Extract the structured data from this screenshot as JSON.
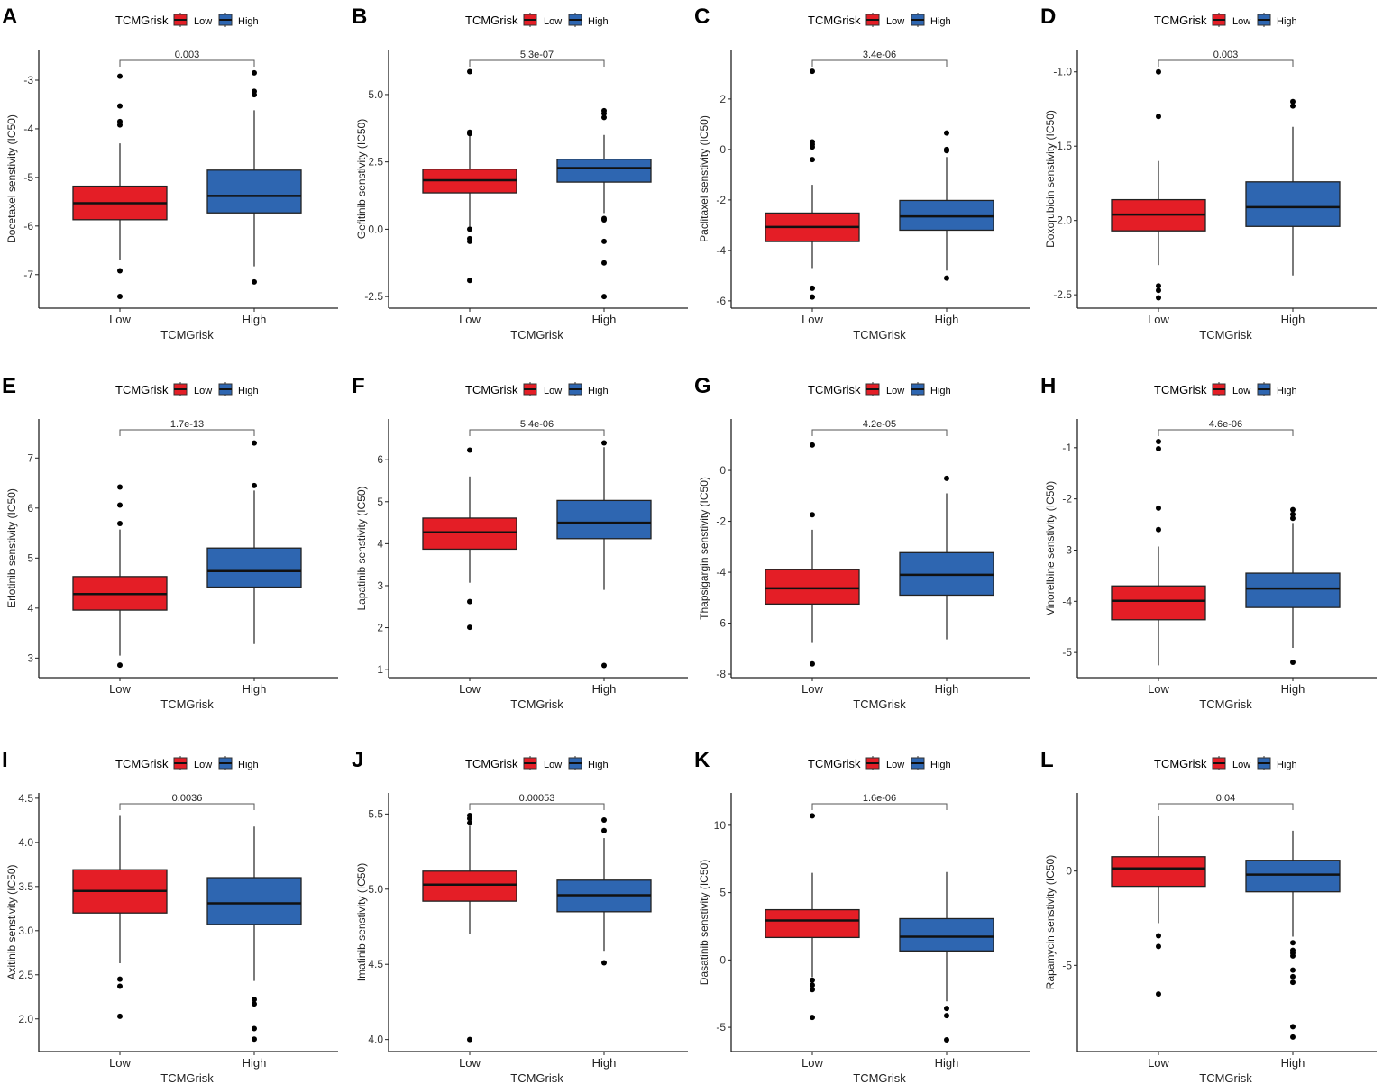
{
  "colors": {
    "low": "#e41e26",
    "high": "#2e66b1",
    "axis": "#222222"
  },
  "chart_data": [
    {
      "letter": "A",
      "type": "box",
      "title": "",
      "legend_title": "TCMGrisk",
      "legend": [
        "Low",
        "High"
      ],
      "categories": [
        "Low",
        "High"
      ],
      "xlabel": "TCMGrisk",
      "ylabel": "Docetaxel senstivity (IC50)",
      "ylim": [
        -7.69,
        -2.37
      ],
      "yticks": [
        -7,
        -6,
        -5,
        -4,
        -3
      ],
      "ytick_labels": [
        "-7",
        "-6",
        "-5",
        "-4",
        "-3"
      ],
      "pvalue": "0.003",
      "boxes": [
        {
          "min": -6.7,
          "q1": -5.87,
          "median": -5.53,
          "q3": -5.18,
          "max": -4.3,
          "outliers": [
            -2.92,
            -3.53,
            -3.85,
            -3.92,
            -6.92,
            -7.45
          ]
        },
        {
          "min": -6.83,
          "q1": -5.73,
          "median": -5.38,
          "q3": -4.85,
          "max": -3.62,
          "outliers": [
            -2.85,
            -3.23,
            -3.3,
            -7.15
          ]
        }
      ]
    },
    {
      "letter": "B",
      "type": "box",
      "legend_title": "TCMGrisk",
      "legend": [
        "Low",
        "High"
      ],
      "categories": [
        "Low",
        "High"
      ],
      "xlabel": "TCMGrisk",
      "ylabel": "Gefitinib senstivity (IC50)",
      "ylim": [
        -2.93,
        6.67
      ],
      "yticks": [
        -2.5,
        0,
        2.5,
        5
      ],
      "ytick_labels": [
        "-2.5",
        "0.0",
        "2.5",
        "5.0"
      ],
      "pvalue": "5.3e-07",
      "boxes": [
        {
          "min": 0.1,
          "q1": 1.35,
          "median": 1.82,
          "q3": 2.23,
          "max": 3.5,
          "outliers": [
            5.85,
            3.55,
            3.6,
            0.0,
            -0.35,
            -0.45,
            -1.9
          ]
        },
        {
          "min": 0.6,
          "q1": 1.75,
          "median": 2.27,
          "q3": 2.6,
          "max": 3.5,
          "outliers": [
            4.4,
            4.3,
            4.15,
            0.4,
            0.35,
            -0.45,
            -1.25,
            -2.5
          ]
        }
      ]
    },
    {
      "letter": "C",
      "type": "box",
      "legend_title": "TCMGrisk",
      "legend": [
        "Low",
        "High"
      ],
      "categories": [
        "Low",
        "High"
      ],
      "xlabel": "TCMGrisk",
      "ylabel": "Paclitaxel senstivity (IC50)",
      "ylim": [
        -6.29,
        3.96
      ],
      "yticks": [
        -6,
        -4,
        -2,
        0,
        2
      ],
      "ytick_labels": [
        "-6",
        "-4",
        "-2",
        "0",
        "2"
      ],
      "pvalue": "3.4e-06",
      "boxes": [
        {
          "min": -4.7,
          "q1": -3.65,
          "median": -3.07,
          "q3": -2.52,
          "max": -1.4,
          "outliers": [
            3.1,
            0.3,
            0.2,
            0.1,
            -0.4,
            -5.5,
            -5.85
          ]
        },
        {
          "min": -4.8,
          "q1": -3.2,
          "median": -2.65,
          "q3": -2.02,
          "max": -0.3,
          "outliers": [
            0.65,
            0.0,
            -0.05,
            -5.1
          ]
        }
      ]
    },
    {
      "letter": "D",
      "type": "box",
      "legend_title": "TCMGrisk",
      "legend": [
        "Low",
        "High"
      ],
      "categories": [
        "Low",
        "High"
      ],
      "xlabel": "TCMGrisk",
      "ylabel": "Doxorubicin senstivity (IC50)",
      "ylim": [
        -2.59,
        -0.85
      ],
      "yticks": [
        -2.5,
        -2,
        -1.5,
        -1
      ],
      "ytick_labels": [
        "-2.5",
        "-2.0",
        "-1.5",
        "-1.0"
      ],
      "pvalue": "0.003",
      "boxes": [
        {
          "min": -2.3,
          "q1": -2.07,
          "median": -1.96,
          "q3": -1.86,
          "max": -1.6,
          "outliers": [
            -1.0,
            -1.3,
            -2.44,
            -2.47,
            -2.52
          ]
        },
        {
          "min": -2.37,
          "q1": -2.04,
          "median": -1.91,
          "q3": -1.74,
          "max": -1.37,
          "outliers": [
            -1.2,
            -1.23
          ]
        }
      ]
    },
    {
      "letter": "E",
      "type": "box",
      "legend_title": "TCMGrisk",
      "legend": [
        "Low",
        "High"
      ],
      "categories": [
        "Low",
        "High"
      ],
      "xlabel": "TCMGrisk",
      "ylabel": "Erlotinib senstivity (IC50)",
      "ylim": [
        2.61,
        7.78
      ],
      "yticks": [
        3,
        4,
        5,
        6,
        7
      ],
      "ytick_labels": [
        "3",
        "4",
        "5",
        "6",
        "7"
      ],
      "pvalue": "1.7e-13",
      "boxes": [
        {
          "min": 3.05,
          "q1": 3.96,
          "median": 4.28,
          "q3": 4.63,
          "max": 5.57,
          "outliers": [
            6.42,
            6.06,
            5.69,
            2.86
          ]
        },
        {
          "min": 3.28,
          "q1": 4.42,
          "median": 4.74,
          "q3": 5.2,
          "max": 6.35,
          "outliers": [
            7.3,
            6.45
          ]
        }
      ]
    },
    {
      "letter": "F",
      "type": "box",
      "legend_title": "TCMGrisk",
      "legend": [
        "Low",
        "High"
      ],
      "categories": [
        "Low",
        "High"
      ],
      "xlabel": "TCMGrisk",
      "ylabel": "Lapatinib senstivity (IC50)",
      "ylim": [
        0.81,
        6.97
      ],
      "yticks": [
        1,
        2,
        3,
        4,
        5,
        6
      ],
      "ytick_labels": [
        "1",
        "2",
        "3",
        "4",
        "5",
        "6"
      ],
      "pvalue": "5.4e-06",
      "boxes": [
        {
          "min": 3.07,
          "q1": 3.87,
          "median": 4.27,
          "q3": 4.61,
          "max": 5.6,
          "outliers": [
            6.23,
            2.62,
            2.01
          ]
        },
        {
          "min": 2.9,
          "q1": 4.12,
          "median": 4.5,
          "q3": 5.03,
          "max": 6.3,
          "outliers": [
            6.4,
            1.1
          ]
        }
      ]
    },
    {
      "letter": "G",
      "type": "box",
      "legend_title": "TCMGrisk",
      "legend": [
        "Low",
        "High"
      ],
      "categories": [
        "Low",
        "High"
      ],
      "xlabel": "TCMGrisk",
      "ylabel": "Thapsigargin senstivity (IC50)",
      "ylim": [
        -8.14,
        2.02
      ],
      "yticks": [
        -8,
        -6,
        -4,
        -2,
        0
      ],
      "ytick_labels": [
        "-8",
        "-6",
        "-4",
        "-2",
        "0"
      ],
      "pvalue": "4.2e-05",
      "boxes": [
        {
          "min": -6.78,
          "q1": -5.25,
          "median": -4.63,
          "q3": -3.9,
          "max": -2.33,
          "outliers": [
            1.0,
            -1.74,
            -7.6
          ]
        },
        {
          "min": -6.64,
          "q1": -4.9,
          "median": -4.1,
          "q3": -3.23,
          "max": -0.9,
          "outliers": [
            -0.31
          ]
        }
      ]
    },
    {
      "letter": "H",
      "type": "box",
      "legend_title": "TCMGrisk",
      "legend": [
        "Low",
        "High"
      ],
      "categories": [
        "Low",
        "High"
      ],
      "xlabel": "TCMGrisk",
      "ylabel": "Vinorelbine senstivity (IC50)",
      "ylim": [
        -5.49,
        -0.44
      ],
      "yticks": [
        -5,
        -4,
        -3,
        -2,
        -1
      ],
      "ytick_labels": [
        "-5",
        "-4",
        "-3",
        "-2",
        "-1"
      ],
      "pvalue": "4.6e-06",
      "boxes": [
        {
          "min": -5.25,
          "q1": -4.36,
          "median": -3.99,
          "q3": -3.7,
          "max": -2.93,
          "outliers": [
            -0.88,
            -1.02,
            -2.18,
            -2.6
          ]
        },
        {
          "min": -4.91,
          "q1": -4.12,
          "median": -3.75,
          "q3": -3.45,
          "max": -2.47,
          "outliers": [
            -2.21,
            -2.3,
            -2.38,
            -5.19
          ]
        }
      ]
    },
    {
      "letter": "I",
      "type": "box",
      "legend_title": "TCMGrisk",
      "legend": [
        "Low",
        "High"
      ],
      "categories": [
        "Low",
        "High"
      ],
      "xlabel": "TCMGrisk",
      "ylabel": "Axitinib senstivity (IC50)",
      "ylim": [
        1.63,
        4.56
      ],
      "yticks": [
        2,
        2.5,
        3,
        3.5,
        4,
        4.5
      ],
      "ytick_labels": [
        "2.0",
        "2.5",
        "3.0",
        "3.5",
        "4.0",
        "4.5"
      ],
      "pvalue": "0.0036",
      "boxes": [
        {
          "min": 2.63,
          "q1": 3.2,
          "median": 3.45,
          "q3": 3.69,
          "max": 4.3,
          "outliers": [
            2.45,
            2.37,
            2.03
          ]
        },
        {
          "min": 2.43,
          "q1": 3.07,
          "median": 3.31,
          "q3": 3.6,
          "max": 4.18,
          "outliers": [
            2.22,
            2.17,
            1.89,
            1.77
          ]
        }
      ]
    },
    {
      "letter": "J",
      "type": "box",
      "legend_title": "TCMGrisk",
      "legend": [
        "Low",
        "High"
      ],
      "categories": [
        "Low",
        "High"
      ],
      "xlabel": "TCMGrisk",
      "ylabel": "Imatinib senstivity (IC50)",
      "ylim": [
        3.92,
        5.64
      ],
      "yticks": [
        4,
        4.5,
        5,
        5.5
      ],
      "ytick_labels": [
        "4.0",
        "4.5",
        "5.0",
        "5.5"
      ],
      "pvalue": "0.00053",
      "boxes": [
        {
          "min": 4.7,
          "q1": 4.92,
          "median": 5.03,
          "q3": 5.12,
          "max": 5.42,
          "outliers": [
            5.49,
            5.47,
            5.44,
            4.0
          ]
        },
        {
          "min": 4.59,
          "q1": 4.85,
          "median": 4.96,
          "q3": 5.06,
          "max": 5.34,
          "outliers": [
            5.46,
            5.39,
            4.51
          ]
        }
      ]
    },
    {
      "letter": "K",
      "type": "box",
      "legend_title": "TCMGrisk",
      "legend": [
        "Low",
        "High"
      ],
      "categories": [
        "Low",
        "High"
      ],
      "xlabel": "TCMGrisk",
      "ylabel": "Dasatinib senstivity (IC50)",
      "ylim": [
        -6.8,
        12.4
      ],
      "yticks": [
        -5,
        0,
        5,
        10
      ],
      "ytick_labels": [
        "-5",
        "0",
        "5",
        "10"
      ],
      "pvalue": "1.6e-06",
      "boxes": [
        {
          "min": -1.27,
          "q1": 1.67,
          "median": 2.93,
          "q3": 3.73,
          "max": 6.47,
          "outliers": [
            10.7,
            -1.5,
            -1.87,
            -2.2,
            -4.27
          ]
        },
        {
          "min": -3.07,
          "q1": 0.67,
          "median": 1.73,
          "q3": 3.07,
          "max": 6.53,
          "outliers": [
            -3.6,
            -4.13,
            -5.93
          ]
        }
      ]
    },
    {
      "letter": "L",
      "type": "box",
      "legend_title": "TCMGrisk",
      "legend": [
        "Low",
        "High"
      ],
      "categories": [
        "Low",
        "High"
      ],
      "xlabel": "TCMGrisk",
      "ylabel": "Rapamycin senstivity (IC50)",
      "ylim": [
        -9.57,
        4.14
      ],
      "yticks": [
        -5,
        0
      ],
      "ytick_labels": [
        "-5",
        "0"
      ],
      "pvalue": "0.04",
      "boxes": [
        {
          "min": -2.76,
          "q1": -0.81,
          "median": 0.14,
          "q3": 0.76,
          "max": 2.9,
          "outliers": [
            -3.43,
            -4.0,
            -6.52
          ]
        },
        {
          "min": -3.48,
          "q1": -1.1,
          "median": -0.19,
          "q3": 0.57,
          "max": 2.14,
          "outliers": [
            -3.8,
            -4.2,
            -4.35,
            -4.5,
            -5.25,
            -5.6,
            -5.9,
            -8.25,
            -8.8
          ]
        }
      ]
    }
  ]
}
